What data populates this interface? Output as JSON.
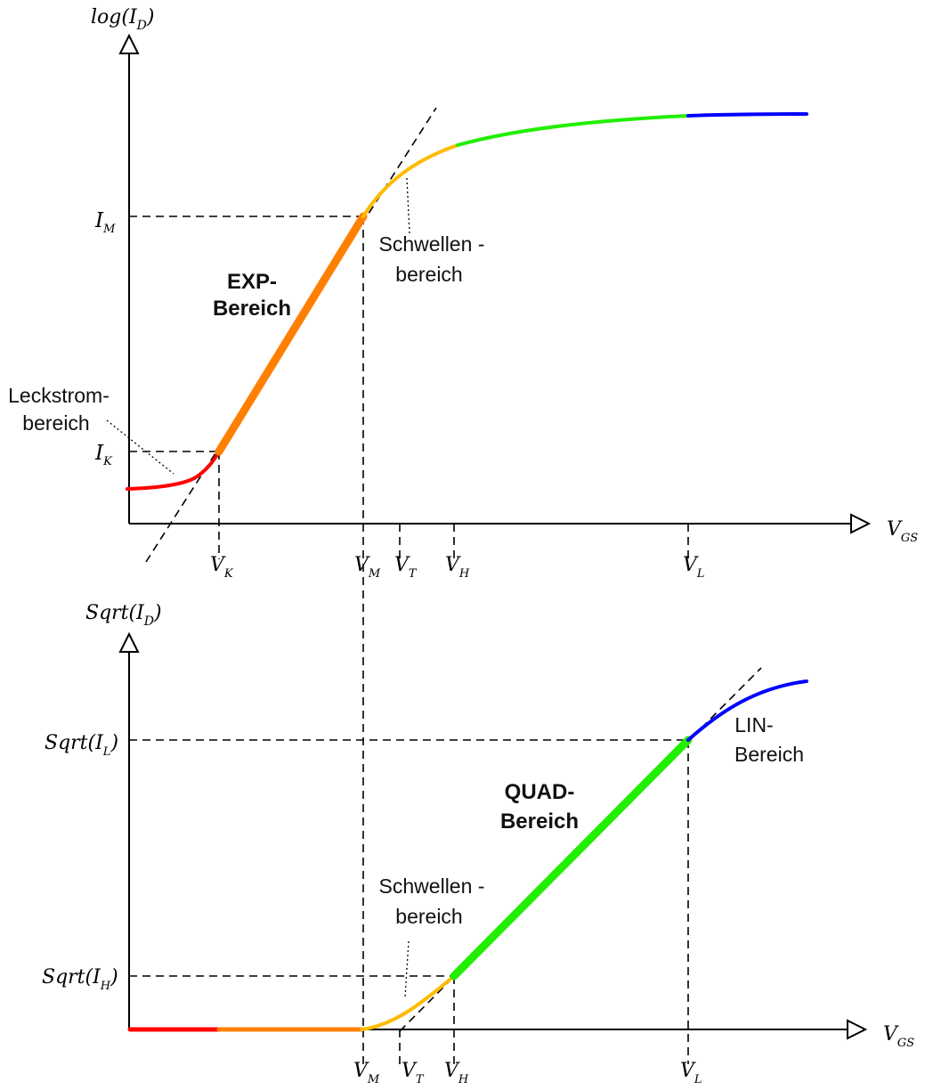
{
  "top_chart": {
    "y_axis": {
      "prefix": "log(I",
      "sub": "D",
      "suffix": ")"
    },
    "x_axis": {
      "main": "V",
      "sub": "GS"
    },
    "y_ticks": [
      {
        "main": "I",
        "sub": "M"
      },
      {
        "main": "I",
        "sub": "K"
      }
    ],
    "x_ticks": [
      {
        "main": "V",
        "sub": "K"
      },
      {
        "main": "V",
        "sub": "M"
      },
      {
        "main": "V",
        "sub": "T"
      },
      {
        "main": "V",
        "sub": "H"
      },
      {
        "main": "V",
        "sub": "L"
      }
    ],
    "regions": {
      "exp_line1": "EXP-",
      "exp_line2": "Bereich",
      "schwellen_line1": "Schwellen -",
      "schwellen_line2": "bereich",
      "leck_line1": "Leckstrom-",
      "leck_line2": "bereich"
    }
  },
  "bottom_chart": {
    "y_axis": {
      "prefix": "Sqrt(I",
      "sub": "D",
      "suffix": ")"
    },
    "x_axis": {
      "main": "V",
      "sub": "GS"
    },
    "y_ticks": [
      {
        "prefix": "Sqrt(I",
        "sub": "L",
        "suffix": ")"
      },
      {
        "prefix": "Sqrt(I",
        "sub": "H",
        "suffix": ")"
      }
    ],
    "x_ticks": [
      {
        "main": "V",
        "sub": "M"
      },
      {
        "main": "V",
        "sub": "T"
      },
      {
        "main": "V",
        "sub": "H"
      },
      {
        "main": "V",
        "sub": "L"
      }
    ],
    "regions": {
      "quad_line1": "QUAD-",
      "quad_line2": "Bereich",
      "lin_line1": "LIN-",
      "lin_line2": "Bereich",
      "schwellen_line1": "Schwellen -",
      "schwellen_line2": "bereich"
    }
  },
  "colors": {
    "leakage": "#ff0000",
    "exp": "#ff8000",
    "threshold": "#ffbb00",
    "quad": "#22ee00",
    "lin": "#0000ff"
  }
}
